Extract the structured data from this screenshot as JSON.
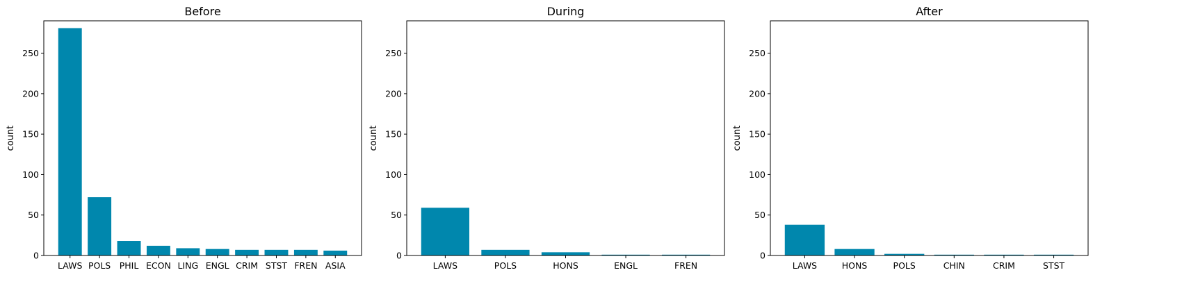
{
  "chart_data": [
    {
      "type": "bar",
      "title": "Before",
      "ylabel": "count",
      "xlabel": "",
      "ylim": [
        0,
        290
      ],
      "yticks": [
        0,
        50,
        100,
        150,
        200,
        250
      ],
      "categories": [
        "LAWS",
        "POLS",
        "PHIL",
        "ECON",
        "LING",
        "ENGL",
        "CRIM",
        "STST",
        "FREN",
        "ASIA"
      ],
      "values": [
        281,
        72,
        18,
        12,
        9,
        8,
        7,
        7,
        7,
        6
      ],
      "color": "#0087ad",
      "grid": false
    },
    {
      "type": "bar",
      "title": "During",
      "ylabel": "count",
      "xlabel": "",
      "ylim": [
        0,
        290
      ],
      "yticks": [
        0,
        50,
        100,
        150,
        200,
        250
      ],
      "categories": [
        "LAWS",
        "POLS",
        "HONS",
        "ENGL",
        "FREN"
      ],
      "values": [
        59,
        7,
        4,
        1,
        1
      ],
      "color": "#0087ad",
      "grid": false
    },
    {
      "type": "bar",
      "title": "After",
      "ylabel": "count",
      "xlabel": "",
      "ylim": [
        0,
        290
      ],
      "yticks": [
        0,
        50,
        100,
        150,
        200,
        250
      ],
      "categories": [
        "LAWS",
        "HONS",
        "POLS",
        "CHIN",
        "CRIM",
        "STST"
      ],
      "values": [
        38,
        8,
        2,
        1,
        1,
        1
      ],
      "color": "#0087ad",
      "grid": false
    }
  ]
}
